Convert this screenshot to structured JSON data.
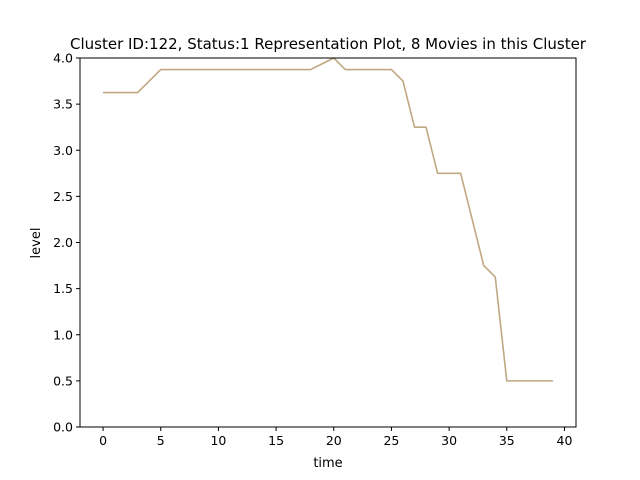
{
  "chart_data": {
    "type": "line",
    "title": "Cluster ID:122, Status:1 Representation Plot, 8 Movies in this Cluster",
    "xlabel": "time",
    "ylabel": "level",
    "xlim": [
      -2,
      41
    ],
    "ylim": [
      0.0,
      4.0
    ],
    "xticks": [
      0,
      5,
      10,
      15,
      20,
      25,
      30,
      35,
      40
    ],
    "xtick_labels": [
      "0",
      "5",
      "10",
      "15",
      "20",
      "25",
      "30",
      "35",
      "40"
    ],
    "yticks": [
      0.0,
      0.5,
      1.0,
      1.5,
      2.0,
      2.5,
      3.0,
      3.5,
      4.0
    ],
    "ytick_labels": [
      "0.0",
      "0.5",
      "1.0",
      "1.5",
      "2.0",
      "2.5",
      "3.0",
      "3.5",
      "4.0"
    ],
    "grid": false,
    "legend": "none",
    "series": [
      {
        "color": "#bfa882",
        "x": [
          0,
          1,
          2,
          3,
          4,
          5,
          6,
          7,
          8,
          9,
          10,
          11,
          12,
          13,
          14,
          15,
          16,
          17,
          18,
          19,
          20,
          21,
          22,
          23,
          24,
          25,
          26,
          27,
          28,
          29,
          30,
          31,
          32,
          33,
          34,
          35,
          36,
          37,
          38,
          39
        ],
        "values": [
          3.625,
          3.625,
          3.625,
          3.625,
          3.75,
          3.875,
          3.875,
          3.875,
          3.875,
          3.875,
          3.875,
          3.875,
          3.875,
          3.875,
          3.875,
          3.875,
          3.875,
          3.875,
          3.875,
          3.9375,
          4.0,
          3.875,
          3.875,
          3.875,
          3.875,
          3.875,
          3.75,
          3.25,
          3.25,
          2.75,
          2.75,
          2.75,
          2.25,
          1.75,
          1.625,
          0.5,
          0.5,
          0.5,
          0.5,
          0.5
        ]
      }
    ]
  }
}
